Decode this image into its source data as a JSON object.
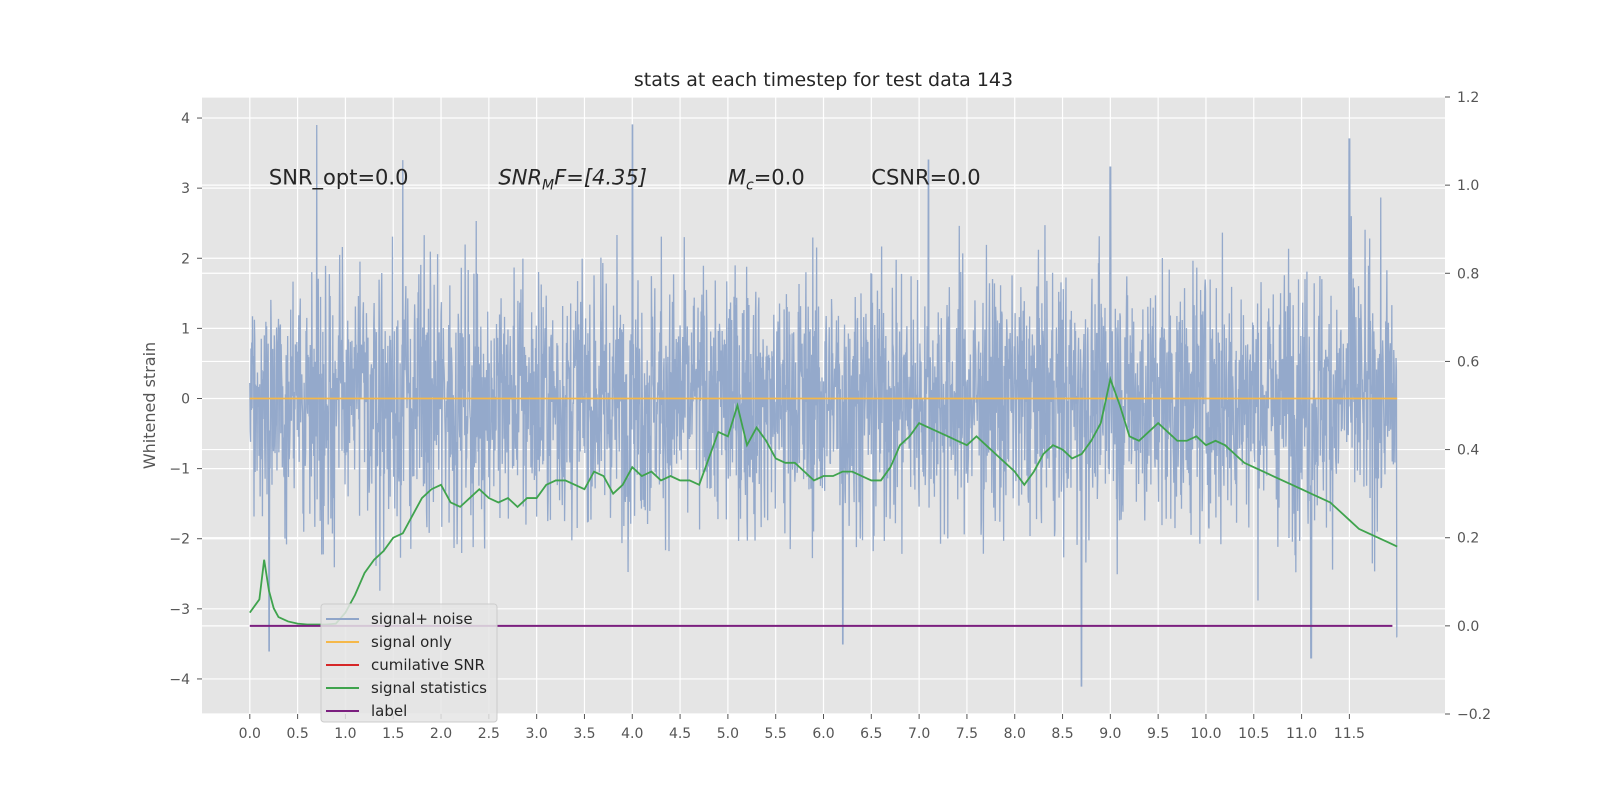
{
  "chart_data": {
    "type": "line",
    "title": "stats at each timestep for test data 143",
    "ylabel_left": "Whitened strain",
    "xlim": [
      -0.5,
      12.5
    ],
    "ylim_left": [
      -4.5,
      4.3
    ],
    "ylim_right": [
      -0.2,
      1.2
    ],
    "x_ticks": [
      "0.0",
      "0.5",
      "1.0",
      "1.5",
      "2.0",
      "2.5",
      "3.0",
      "3.5",
      "4.0",
      "4.5",
      "5.0",
      "5.5",
      "6.0",
      "6.5",
      "7.0",
      "7.5",
      "8.0",
      "8.5",
      "9.0",
      "9.5",
      "10.0",
      "10.5",
      "11.0",
      "11.5"
    ],
    "y_ticks_left": [
      "4",
      "3",
      "2",
      "1",
      "0",
      "−1",
      "−2",
      "−3",
      "−4"
    ],
    "y_ticks_right": [
      "1.2",
      "1.0",
      "0.8",
      "0.6",
      "0.4",
      "0.2",
      "0.0",
      "−0.2"
    ],
    "grid": true,
    "legend_placement": "lower-left",
    "annotations": {
      "snr_opt": "SNR_opt=0.0",
      "snr_mf_base": "SNR",
      "snr_mf_sub": "M",
      "snr_mf_rest": "F=[4.35]",
      "mc_base": "M",
      "mc_sub": "c",
      "mc_rest": "=0.0",
      "csnr": "CSNR=0.0"
    },
    "series": [
      {
        "name": "signal+ noise",
        "axis": "left",
        "color": "#8fa5c9",
        "description_values": "noise envelope",
        "x_range": [
          0.0,
          12.0
        ],
        "envelope_upper_typical": 2.0,
        "envelope_lower_typical": -2.0,
        "peaks_upper": [
          [
            0.7,
            3.9
          ],
          [
            1.6,
            3.4
          ],
          [
            4.0,
            3.9
          ],
          [
            7.1,
            3.4
          ],
          [
            9.0,
            3.3
          ],
          [
            11.5,
            3.7
          ]
        ],
        "peaks_lower": [
          [
            0.2,
            -3.6
          ],
          [
            6.2,
            -3.5
          ],
          [
            8.7,
            -4.1
          ],
          [
            11.1,
            -3.7
          ],
          [
            12.0,
            -3.4
          ]
        ]
      },
      {
        "name": "signal only",
        "axis": "left",
        "color": "#f5b84a",
        "x": [
          0.0,
          12.0
        ],
        "y": [
          0.0,
          0.0
        ]
      },
      {
        "name": "cumilative SNR",
        "axis": "right",
        "color": "#d62728",
        "x": [],
        "y": []
      },
      {
        "name": "signal statistics",
        "axis": "right",
        "color": "#3fa34d",
        "x": [
          0.0,
          0.1,
          0.15,
          0.2,
          0.25,
          0.3,
          0.4,
          0.5,
          0.6,
          0.7,
          0.8,
          0.9,
          1.0,
          1.1,
          1.2,
          1.3,
          1.4,
          1.5,
          1.6,
          1.7,
          1.8,
          1.9,
          2.0,
          2.1,
          2.2,
          2.3,
          2.4,
          2.5,
          2.6,
          2.7,
          2.8,
          2.9,
          3.0,
          3.1,
          3.2,
          3.3,
          3.4,
          3.5,
          3.6,
          3.7,
          3.8,
          3.9,
          4.0,
          4.1,
          4.2,
          4.3,
          4.4,
          4.5,
          4.6,
          4.7,
          4.8,
          4.9,
          5.0,
          5.1,
          5.2,
          5.3,
          5.4,
          5.5,
          5.6,
          5.7,
          5.8,
          5.9,
          6.0,
          6.1,
          6.2,
          6.3,
          6.4,
          6.5,
          6.6,
          6.7,
          6.8,
          6.9,
          7.0,
          7.1,
          7.2,
          7.3,
          7.4,
          7.5,
          7.6,
          7.7,
          7.8,
          7.9,
          8.0,
          8.1,
          8.2,
          8.3,
          8.4,
          8.5,
          8.6,
          8.7,
          8.8,
          8.9,
          9.0,
          9.1,
          9.2,
          9.3,
          9.4,
          9.5,
          9.6,
          9.7,
          9.8,
          9.9,
          10.0,
          10.1,
          10.2,
          10.3,
          10.4,
          10.5,
          10.6,
          10.7,
          10.8,
          10.9,
          11.0,
          11.1,
          11.2,
          11.3,
          11.4,
          11.5,
          11.6,
          11.7,
          11.8,
          11.9,
          12.0
        ],
        "y": [
          0.03,
          0.06,
          0.15,
          0.08,
          0.04,
          0.02,
          0.01,
          0.005,
          0.003,
          0.003,
          0.003,
          0.005,
          0.03,
          0.07,
          0.12,
          0.15,
          0.17,
          0.2,
          0.21,
          0.25,
          0.29,
          0.31,
          0.32,
          0.28,
          0.27,
          0.29,
          0.31,
          0.29,
          0.28,
          0.29,
          0.27,
          0.29,
          0.29,
          0.32,
          0.33,
          0.33,
          0.32,
          0.31,
          0.35,
          0.34,
          0.3,
          0.32,
          0.36,
          0.34,
          0.35,
          0.33,
          0.34,
          0.33,
          0.33,
          0.32,
          0.38,
          0.44,
          0.43,
          0.5,
          0.41,
          0.45,
          0.42,
          0.38,
          0.37,
          0.37,
          0.35,
          0.33,
          0.34,
          0.34,
          0.35,
          0.35,
          0.34,
          0.33,
          0.33,
          0.36,
          0.41,
          0.43,
          0.46,
          0.45,
          0.44,
          0.43,
          0.42,
          0.41,
          0.43,
          0.41,
          0.39,
          0.37,
          0.35,
          0.32,
          0.35,
          0.39,
          0.41,
          0.4,
          0.38,
          0.39,
          0.42,
          0.46,
          0.56,
          0.5,
          0.43,
          0.42,
          0.44,
          0.46,
          0.44,
          0.42,
          0.42,
          0.43,
          0.41,
          0.42,
          0.41,
          0.39,
          0.37,
          0.36,
          0.35,
          0.34,
          0.33,
          0.32,
          0.31,
          0.3,
          0.29,
          0.28,
          0.26,
          0.24,
          0.22,
          0.21,
          0.2,
          0.19,
          0.18
        ],
        "note": ""
      },
      {
        "name": "label",
        "axis": "right",
        "color": "#7b1f7f",
        "x": [
          0.0,
          11.95
        ],
        "y": [
          0.0,
          0.0
        ]
      }
    ]
  }
}
